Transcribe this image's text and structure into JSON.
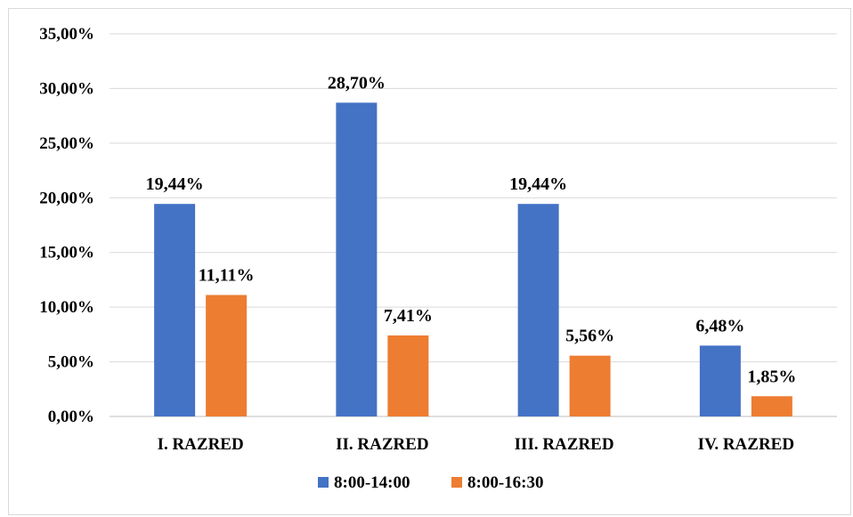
{
  "chart_data": {
    "type": "bar",
    "title": "",
    "xlabel": "",
    "ylabel": "",
    "categories": [
      "I. RAZRED",
      "II. RAZRED",
      "III. RAZRED",
      "IV. RAZRED"
    ],
    "series": [
      {
        "name": "8:00-14:00",
        "color": "#4472C4",
        "values": [
          19.44,
          28.7,
          19.44,
          6.48
        ],
        "labels": [
          "19,44%",
          "28,70%",
          "19,44%",
          "6,48%"
        ]
      },
      {
        "name": "8:00-16:30",
        "color": "#ED7D31",
        "values": [
          11.11,
          7.41,
          5.56,
          1.85
        ],
        "labels": [
          "11,11%",
          "7,41%",
          "5,56%",
          "1,85%"
        ]
      }
    ],
    "ylim": [
      0,
      35
    ],
    "yticks": [
      0,
      5,
      10,
      15,
      20,
      25,
      30,
      35
    ],
    "ytick_labels": [
      "0,00%",
      "5,00%",
      "10,00%",
      "15,00%",
      "20,00%",
      "25,00%",
      "30,00%",
      "35,00%"
    ],
    "grid": true,
    "legend_position": "bottom"
  }
}
